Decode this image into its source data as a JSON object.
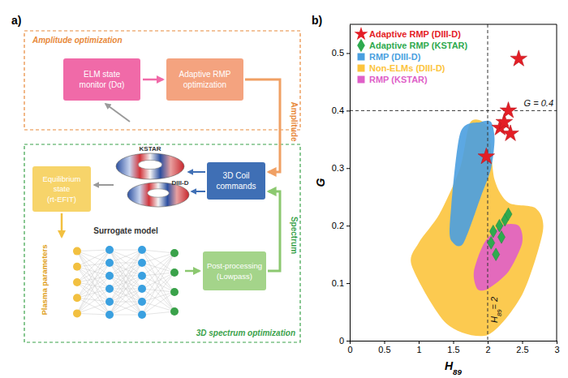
{
  "diagram": {
    "panel_label": "a)",
    "groups": [
      {
        "label": "Amplitude optimization"
      },
      {
        "label": "3D spectrum optimization"
      }
    ],
    "nodes": [
      {
        "lines": [
          "ELM state",
          "monitor (Dα)"
        ]
      },
      {
        "lines": [
          "Adaptive RMP",
          "optimization"
        ]
      },
      {
        "lines": [
          "Equilibrium",
          "state",
          "(rt-EFIT)"
        ]
      },
      {
        "lines": [
          "3D Coil",
          "commands"
        ]
      },
      {
        "lines": [
          "Post-processing",
          "(Lowpass)"
        ]
      },
      {
        "lines": [
          "Surrogate model"
        ]
      }
    ],
    "devices": [
      "KSTAR",
      "DIII-D"
    ],
    "edge_labels": [
      "Amplitude",
      "Spectrum",
      "Plasma parameters"
    ]
  },
  "chart_data": {
    "type": "scatter",
    "panel_label": "b)",
    "x_label": "H89",
    "y_label": "G",
    "xlim": [
      0,
      3
    ],
    "xticks": [
      0,
      0.5,
      1,
      1.5,
      2,
      2.5,
      3
    ],
    "ylim": [
      0,
      0.55
    ],
    "yticks": [
      0,
      0.1,
      0.2,
      0.3,
      0.4,
      0.5
    ],
    "legend": "upper-left",
    "series": [
      {
        "name": "Adaptive RMP (DIII-D)",
        "type": "scatter",
        "marker": "star",
        "color": "#e41e26",
        "x": [
          1.98,
          2.18,
          2.24,
          2.3,
          2.33,
          2.45
        ],
        "values": [
          0.32,
          0.37,
          0.38,
          0.4,
          0.36,
          0.49
        ]
      },
      {
        "name": "Adaptive RMP (KSTAR)",
        "type": "scatter",
        "marker": "diamond",
        "color": "#2eaa4f",
        "x": [
          2.05,
          2.08,
          2.12,
          2.17,
          2.2,
          2.25,
          2.3
        ],
        "values": [
          0.17,
          0.19,
          0.15,
          0.2,
          0.18,
          0.21,
          0.22
        ]
      },
      {
        "name": "RMP (DIII-D)",
        "type": "area",
        "marker": "square",
        "color": "#4a9fe0",
        "x": [
          1.45,
          1.6,
          1.9,
          2.05,
          2.1,
          2.05,
          1.9,
          1.65,
          1.5
        ],
        "values": [
          0.2,
          0.36,
          0.38,
          0.38,
          0.35,
          0.3,
          0.25,
          0.17,
          0.17
        ]
      },
      {
        "name": "Non-ELMs (DIII-D)",
        "type": "area",
        "marker": "square",
        "color": "#fcc43d",
        "x": [
          0.9,
          1.4,
          2.0,
          2.5,
          2.8,
          2.7,
          2.3,
          2.1,
          2.0,
          1.75,
          1.6,
          1.3,
          1.0
        ],
        "values": [
          0.13,
          0.03,
          0.01,
          0.08,
          0.19,
          0.23,
          0.24,
          0.28,
          0.37,
          0.38,
          0.3,
          0.22,
          0.17
        ]
      },
      {
        "name": "RMP (KSTAR)",
        "type": "area",
        "marker": "square",
        "color": "#e05fc8",
        "x": [
          1.8,
          1.95,
          2.2,
          2.45,
          2.5,
          2.3,
          2.0,
          1.85
        ],
        "values": [
          0.12,
          0.17,
          0.2,
          0.2,
          0.17,
          0.12,
          0.09,
          0.09
        ]
      }
    ],
    "annotations": [
      {
        "text": "G = 0.4",
        "axis": "y",
        "value": 0.4
      },
      {
        "text": "H89= 2",
        "axis": "x",
        "value": 2
      }
    ]
  }
}
